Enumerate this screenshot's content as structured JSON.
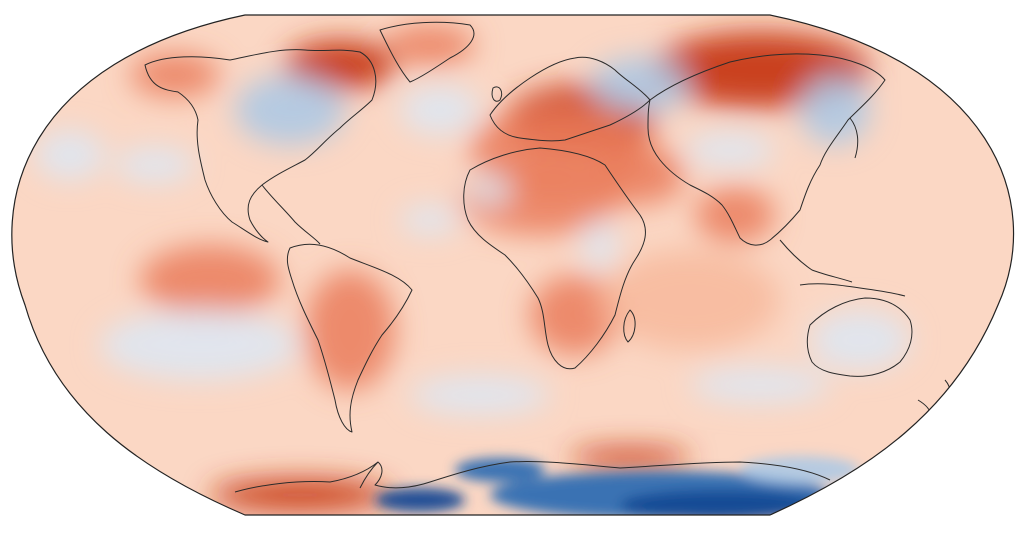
{
  "map": {
    "projection": "Robinson",
    "colormap": "RdBu_r",
    "colors": {
      "background": "#ffffff",
      "base": "#fbd7c4",
      "coastline": "#2b2b2b",
      "strong_warm": "#c73a16",
      "warm": "#ea7d5c",
      "light_warm": "#f7b89c",
      "neutral": "#f8f3f0",
      "light_cool": "#dce7f4",
      "cool": "#a9c8e6",
      "strong_cool": "#2f6eb2",
      "deep_cool": "#134a93"
    },
    "anomaly_regions": [
      {
        "name": "siberia-warm",
        "level": "strong_warm"
      },
      {
        "name": "europe-warm",
        "level": "strong_warm"
      },
      {
        "name": "arctic-canada-warm",
        "level": "strong_warm"
      },
      {
        "name": "west-antarctica-warm",
        "level": "warm"
      },
      {
        "name": "south-america-warm",
        "level": "warm"
      },
      {
        "name": "central-asia-cool",
        "level": "cool"
      },
      {
        "name": "east-siberia-cool",
        "level": "cool"
      },
      {
        "name": "eastern-north-america-cool",
        "level": "cool"
      },
      {
        "name": "south-pacific-cool",
        "level": "light_cool"
      },
      {
        "name": "southern-ocean-cool",
        "level": "light_cool"
      },
      {
        "name": "australia-cool",
        "level": "light_cool"
      },
      {
        "name": "east-antarctica-cold",
        "level": "deep_cool"
      }
    ]
  }
}
